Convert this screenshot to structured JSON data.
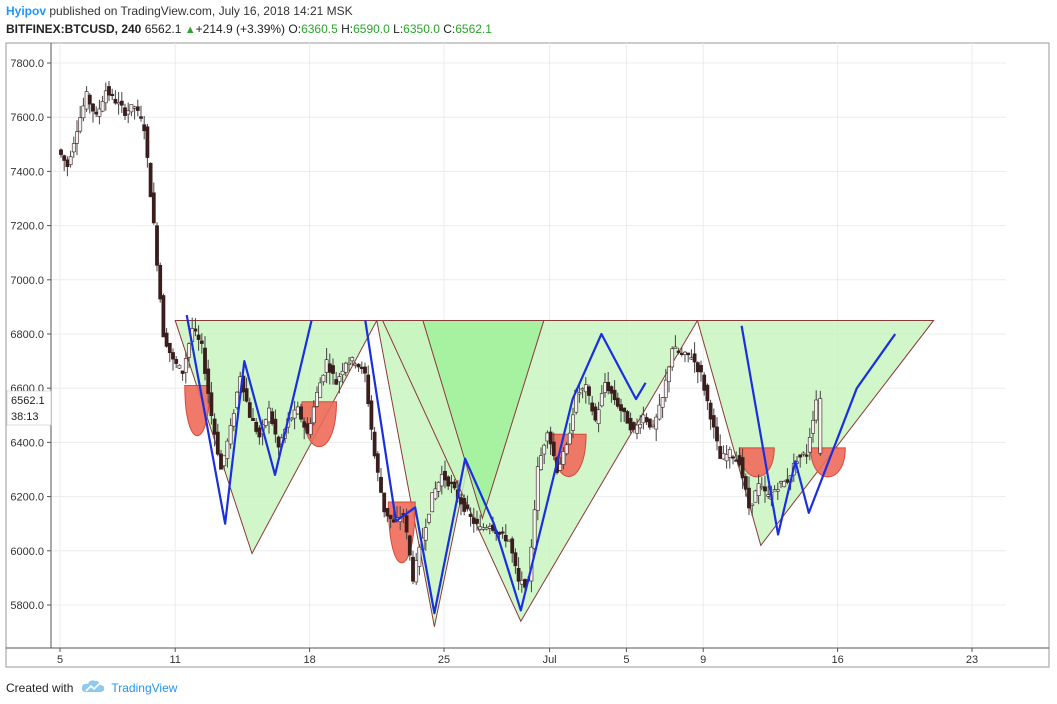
{
  "header": {
    "author": "Hyipov",
    "published_text": "published on TradingView.com, July 16, 2018 14:21 MSK",
    "symbol": "BITFINEX:BTCUSD, 240",
    "last": "6562.1",
    "change": "+214.9 (+3.39%)",
    "o_label": "O:",
    "o_val": "6360.5",
    "h_label": "H:",
    "h_val": "6590.0",
    "l_label": "L:",
    "l_val": "6350.0",
    "c_label": "C:",
    "c_val": "6562.1"
  },
  "price_label": {
    "price": "6562.1",
    "countdown": "38:13"
  },
  "footer": {
    "created_with": "Created with",
    "brand": "TradingView"
  },
  "colors": {
    "candle_up": "#f2f2f2",
    "candle_down": "#3a1e1e",
    "fill_green": "#c8f5c0",
    "fill_green_dark": "#a6f2a0",
    "fill_red": "#ee6a5a",
    "zigzag": "#1a2fe0",
    "outline": "#8b3a3a"
  },
  "chart_data": {
    "type": "candlestick",
    "ylim": [
      5700,
      7850
    ],
    "y_ticks": [
      "7800.0",
      "7600.0",
      "7400.0",
      "7200.0",
      "7000.0",
      "6800.0",
      "6600.0",
      "6400.0",
      "6200.0",
      "6000.0",
      "5800.0"
    ],
    "x_ticks": [
      "5",
      "11",
      "18",
      "25",
      "Jul",
      "5",
      "9",
      "16",
      "23"
    ],
    "last_price": 6562.1,
    "candle_path_close": [
      [
        5,
        7480
      ],
      [
        5.5,
        7420
      ],
      [
        6,
        7560
      ],
      [
        6.5,
        7680
      ],
      [
        7,
        7600
      ],
      [
        7.5,
        7700
      ],
      [
        8,
        7660
      ],
      [
        8.5,
        7620
      ],
      [
        9,
        7640
      ],
      [
        9.5,
        7560
      ],
      [
        10,
        7200
      ],
      [
        10.5,
        6800
      ],
      [
        11,
        6700
      ],
      [
        11.5,
        6660
      ],
      [
        12,
        6820
      ],
      [
        12.5,
        6750
      ],
      [
        13,
        6500
      ],
      [
        13.5,
        6300
      ],
      [
        14,
        6450
      ],
      [
        14.5,
        6650
      ],
      [
        15,
        6500
      ],
      [
        15.5,
        6420
      ],
      [
        16,
        6520
      ],
      [
        16.5,
        6380
      ],
      [
        17,
        6480
      ],
      [
        17.5,
        6520
      ],
      [
        18,
        6430
      ],
      [
        18.5,
        6580
      ],
      [
        19,
        6700
      ],
      [
        19.5,
        6620
      ],
      [
        20,
        6700
      ],
      [
        20.5,
        6700
      ],
      [
        21,
        6650
      ],
      [
        21.5,
        6350
      ],
      [
        22,
        6150
      ],
      [
        22.5,
        6100
      ],
      [
        23,
        6140
      ],
      [
        23.5,
        5900
      ],
      [
        24,
        6050
      ],
      [
        24.5,
        6200
      ],
      [
        25,
        6280
      ],
      [
        25.5,
        6240
      ],
      [
        26,
        6180
      ],
      [
        26.5,
        6120
      ],
      [
        27,
        6080
      ],
      [
        27.5,
        6100
      ],
      [
        28,
        6060
      ],
      [
        28.5,
        6040
      ],
      [
        29,
        5880
      ],
      [
        29.5,
        5880
      ],
      [
        30,
        6300
      ],
      [
        30.5,
        6450
      ],
      [
        31,
        6300
      ],
      [
        31.5,
        6380
      ],
      [
        32,
        6580
      ],
      [
        32.5,
        6600
      ],
      [
        33,
        6480
      ],
      [
        33.5,
        6620
      ],
      [
        34,
        6560
      ],
      [
        34.5,
        6500
      ],
      [
        35,
        6440
      ],
      [
        35.5,
        6500
      ],
      [
        36,
        6450
      ],
      [
        36.5,
        6560
      ],
      [
        37,
        6750
      ],
      [
        37.5,
        6720
      ],
      [
        38,
        6720
      ],
      [
        38.5,
        6650
      ],
      [
        39,
        6500
      ],
      [
        39.5,
        6340
      ],
      [
        40,
        6360
      ],
      [
        40.5,
        6330
      ],
      [
        41,
        6160
      ],
      [
        41.5,
        6240
      ],
      [
        42,
        6200
      ],
      [
        42.5,
        6240
      ],
      [
        43,
        6260
      ],
      [
        43.5,
        6340
      ],
      [
        44,
        6360
      ],
      [
        44.5,
        6560
      ]
    ],
    "shapes": {
      "green_triangles": [
        [
          [
            11,
            6850
          ],
          [
            21.5,
            6850
          ],
          [
            15,
            5990
          ]
        ],
        [
          [
            21.5,
            6850
          ],
          [
            27.8,
            6850
          ],
          [
            24.5,
            5720
          ]
        ],
        [
          [
            21.8,
            6850
          ],
          [
            38.2,
            6850
          ],
          [
            29,
            5740
          ]
        ],
        [
          [
            38.2,
            6850
          ],
          [
            50.5,
            6850
          ],
          [
            41.5,
            6020
          ]
        ]
      ],
      "dark_green_triangle": [
        [
          23.9,
          6850
        ],
        [
          30.2,
          6850
        ],
        [
          27,
          6120
        ]
      ],
      "red_bowls": [
        [
          11.5,
          12.8,
          6610,
          6420
        ],
        [
          17.6,
          19.4,
          6550,
          6380
        ],
        [
          22.1,
          23.5,
          6180,
          5950
        ],
        [
          30.6,
          32.4,
          6430,
          6270
        ],
        [
          40.4,
          42.2,
          6380,
          6270
        ],
        [
          44.1,
          45.9,
          6380,
          6270
        ]
      ],
      "zigzags": [
        [
          [
            11.6,
            6870
          ],
          [
            13.6,
            6100
          ],
          [
            14.6,
            6700
          ],
          [
            16.2,
            6280
          ],
          [
            18.1,
            6850
          ]
        ],
        [
          [
            20.9,
            6850
          ],
          [
            22.5,
            6110
          ],
          [
            23.5,
            6160
          ],
          [
            24.5,
            5770
          ],
          [
            26.1,
            6340
          ],
          [
            27.6,
            6100
          ],
          [
            29,
            5780
          ],
          [
            31.7,
            6560
          ],
          [
            33.2,
            6800
          ],
          [
            35,
            6560
          ],
          [
            35.5,
            6620
          ]
        ],
        [
          [
            40.5,
            6830
          ],
          [
            42.4,
            6060
          ],
          [
            43.3,
            6330
          ],
          [
            44,
            6140
          ],
          [
            46.5,
            6600
          ],
          [
            48.5,
            6800
          ]
        ]
      ]
    }
  }
}
